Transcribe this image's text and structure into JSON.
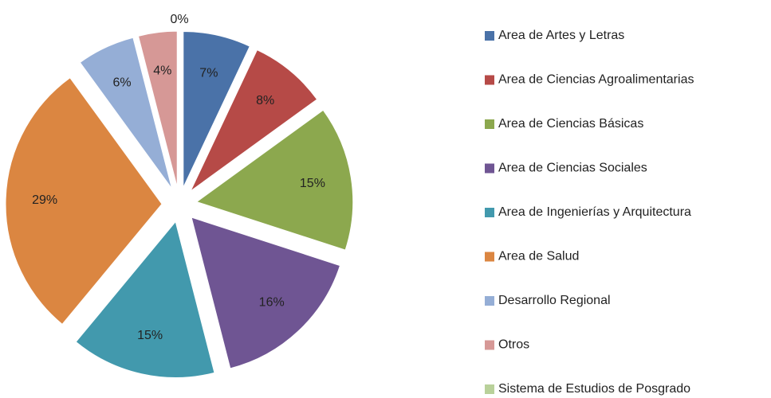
{
  "chart_data": {
    "type": "pie",
    "categories": [
      "Area de Artes y Letras",
      "Area de Ciencias Agroalimentarias",
      "Area de Ciencias Básicas",
      "Area de Ciencias Sociales",
      "Area de Ingenierías y Arquitectura",
      "Area de Salud",
      "Desarrollo Regional",
      "Otros",
      "Sistema de Estudios de Posgrado"
    ],
    "values": [
      7,
      8,
      15,
      16,
      15,
      29,
      6,
      4,
      0
    ],
    "value_labels": [
      "7%",
      "8%",
      "15%",
      "16%",
      "15%",
      "29%",
      "6%",
      "4%",
      "0%"
    ],
    "colors": [
      "#4a72a8",
      "#b64a47",
      "#8ca84e",
      "#6f5593",
      "#4299ad",
      "#db8641",
      "#95aed6",
      "#d69896",
      "#b9d19a"
    ],
    "legend": "right"
  }
}
